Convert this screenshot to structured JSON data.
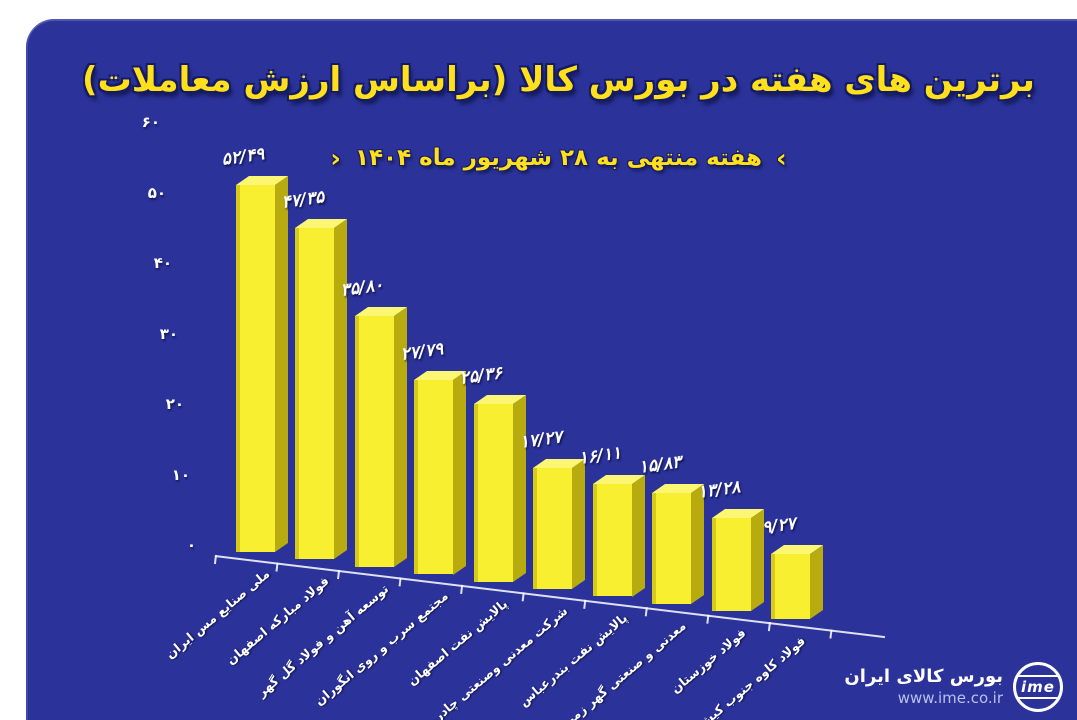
{
  "title": "برترین های هفته در بورس کالا (براساس ارزش معاملات)",
  "subtitle": {
    "left_chevron": "›",
    "text": "هفته منتهی به ۲۸ شهریور ماه ۱۴۰۴",
    "right_chevron": "‹"
  },
  "chart_data": {
    "type": "bar",
    "style": "3d-column",
    "title": "برترین های هفته در بورس کالا (براساس ارزش معاملات)",
    "subtitle": "هفته منتهی به ۲۸ شهریور ماه ۱۴۰۴",
    "categories": [
      "ملی صنایع مس ایران",
      "فولاد مبارکه اصفهان",
      "توسعه آهن و فولاد گل گهر",
      "مجتمع سرب و روی انگوران",
      "پالایش نفت اصفهان",
      "شرکت معدنی وصنعتی چادرملو",
      "پالایش نفت بندرعباس",
      "معدنی و صنعتی گهر زمین",
      "فولاد خوزستان",
      "فولاد کاوه جنوب کیش"
    ],
    "values": [
      52.49,
      47.35,
      35.8,
      27.79,
      25.36,
      17.27,
      16.11,
      15.83,
      13.28,
      9.27
    ],
    "value_labels": [
      "۵۲/۴۹",
      "۴۷/۳۵",
      "۳۵/۸۰",
      "۲۷/۷۹",
      "۲۵/۳۶",
      "۱۷/۲۷",
      "۱۶/۱۱",
      "۱۵/۸۳",
      "۱۳/۲۸",
      "۹/۲۷"
    ],
    "y_tick_labels": [
      "۶۰",
      "۵۰",
      "۴۰",
      "۳۰",
      "۲۰",
      "۱۰",
      "۰"
    ],
    "ylim": [
      0,
      60
    ],
    "xlabel": "",
    "ylabel": "",
    "legend": "none",
    "grid": false
  },
  "footer": {
    "org": "بورس کالای ایران",
    "url": "www.ime.co.ir",
    "logo_text": "ime"
  },
  "colors": {
    "page_bg": "#ffffff",
    "panel_bg": "#2b339b",
    "bar_front": "#f7ef2f",
    "bar_front_edge": "#d6ca1a",
    "bar_top": "#fcf772",
    "bar_side": "#b7ab10",
    "title_yellow": "#ffe01a",
    "label_white": "#ffffff",
    "url_color": "#b6c2ea"
  }
}
